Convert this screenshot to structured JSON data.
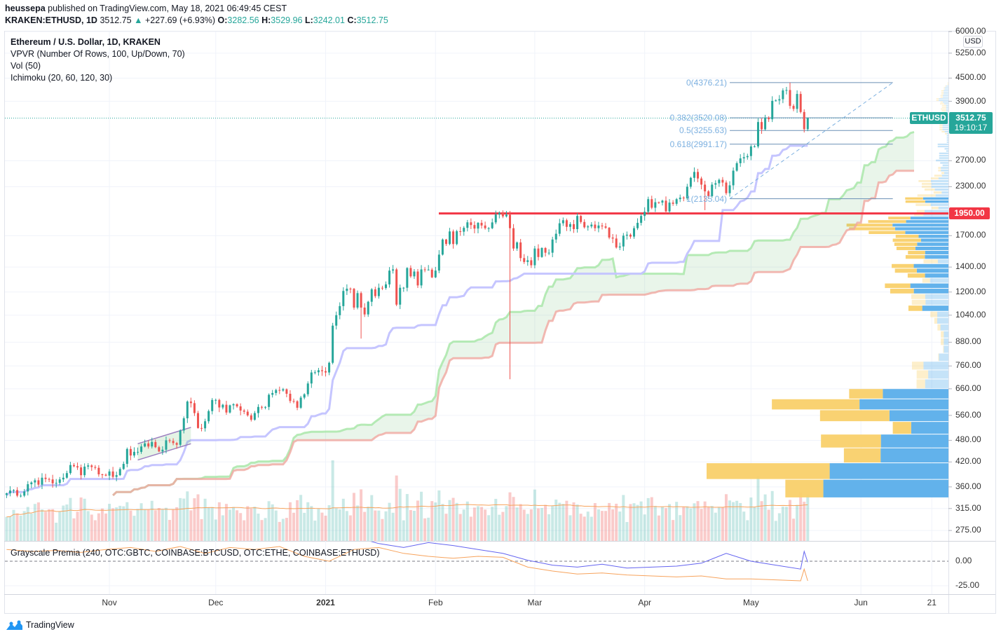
{
  "header": {
    "publisher": "heussepa",
    "published_text": " published on TradingView.com, May 18, 2021 06:49:45 CEST",
    "symbol": "KRAKEN:ETHUSD, 1D",
    "last": "3512.75",
    "change": "+227.69 (+6.93%)",
    "o_label": "O:",
    "o": "3282.56",
    "h_label": "H:",
    "h": "3529.96",
    "l_label": "L:",
    "l": "3242.01",
    "c_label": "C:",
    "c": "3512.75"
  },
  "legend": {
    "title": "Ethereum / U.S. Dollar, 1D, KRAKEN",
    "vpvr": "VPVR (Number Of Rows, 100, Up/Down, 70)",
    "vol": "Vol (50)",
    "ichimoku": "Ichimoku (20, 60, 120, 30)"
  },
  "premia_label": "Grayscale Premia (240, OTC:GBTC, COINBASE:BTCUSD, OTC:ETHE, COINBASE:ETHUSD)",
  "price_axis": {
    "currency": "USD",
    "ticks": [
      "6000.00",
      "5250.00",
      "4500.00",
      "3900.00",
      "2700.00",
      "2300.00",
      "1700.00",
      "1400.00",
      "1200.00",
      "1040.00",
      "880.00",
      "760.00",
      "660.00",
      "560.00",
      "480.00",
      "420.00",
      "360.00",
      "315.00",
      "275.00"
    ]
  },
  "premia_axis": {
    "ticks": [
      "0.00",
      "-25.00"
    ]
  },
  "time_axis": [
    {
      "label": "Nov",
      "date": "2020-11-01"
    },
    {
      "label": "Dec",
      "date": "2020-12-01"
    },
    {
      "label": "2021",
      "date": "2021-01-01",
      "bold": true
    },
    {
      "label": "Feb",
      "date": "2021-02-01"
    },
    {
      "label": "Mar",
      "date": "2021-03-01"
    },
    {
      "label": "Apr",
      "date": "2021-04-01"
    },
    {
      "label": "May",
      "date": "2021-05-01"
    },
    {
      "label": "Jun",
      "date": "2021-06-01"
    },
    {
      "label": "21",
      "date": "2021-06-21"
    }
  ],
  "tags": {
    "symbol": "ETHUSD",
    "price": "3512.75",
    "countdown": "19:10:17",
    "level": "1950.00"
  },
  "colors": {
    "up": "#26a69a",
    "down": "#ef5350",
    "vpvr_up": "#5aaeea",
    "vpvr_down": "#f9d06a",
    "level_line": "#f23645",
    "fib": "#7cb0e0",
    "base_line": "#c5c5ff",
    "span_a": "#a5e6a5",
    "span_b": "#f0a8a0",
    "vol_ma": "#f7a35c",
    "premia_eth": "#6464f0",
    "premia_btc": "#f7a35c",
    "tv_blue": "#2196f3"
  },
  "footer": {
    "logo_text": "TradingView"
  },
  "chart_data": [
    {
      "type": "candlestick",
      "interval": "1D",
      "start_date": "2020-10-03",
      "yscale": "log",
      "ylim": [
        275,
        6000
      ],
      "close": [
        346,
        352,
        353,
        341,
        341,
        350,
        366,
        370,
        375,
        365,
        381,
        378,
        377,
        368,
        369,
        377,
        381,
        392,
        412,
        409,
        406,
        387,
        408,
        411,
        407,
        405,
        389,
        388,
        386,
        396,
        383,
        387,
        402,
        415,
        455,
        437,
        447,
        447,
        462,
        471,
        462,
        475,
        460,
        448,
        453,
        480,
        478,
        472,
        467,
        510,
        550,
        610,
        604,
        568,
        518,
        517,
        540,
        575,
        616,
        616,
        588,
        598,
        570,
        596,
        600,
        592,
        577,
        573,
        560,
        545,
        568,
        590,
        588,
        590,
        636,
        643,
        655,
        653,
        658,
        640,
        612,
        611,
        587,
        625,
        638,
        682,
        730,
        731,
        740,
        736,
        730,
        775,
        975,
        1040,
        1100,
        1208,
        1225,
        1224,
        1090,
        1192,
        1090,
        1045,
        1130,
        1220,
        1170,
        1232,
        1230,
        1258,
        1370,
        1380,
        1110,
        1232,
        1232,
        1392,
        1322,
        1362,
        1250,
        1380,
        1377,
        1378,
        1314,
        1370,
        1512,
        1660,
        1615,
        1745,
        1614,
        1747,
        1742,
        1784,
        1846,
        1815,
        1776,
        1840,
        1810,
        1780,
        1780,
        1845,
        1937,
        1958,
        1915,
        1935,
        1780,
        1570,
        1630,
        1480,
        1445,
        1460,
        1416,
        1570,
        1490,
        1575,
        1530,
        1530,
        1660,
        1720,
        1835,
        1870,
        1795,
        1825,
        1770,
        1920,
        1850,
        1790,
        1800,
        1820,
        1780,
        1810,
        1800,
        1785,
        1680,
        1670,
        1580,
        1590,
        1700,
        1710,
        1690,
        1780,
        1840,
        1920,
        1970,
        2130,
        2020,
        2090,
        2085,
        2110,
        1975,
        2085,
        2070,
        2130,
        2150,
        2140,
        2300,
        2430,
        2520,
        2420,
        2330,
        2235,
        2170,
        2330,
        2350,
        2400,
        2360,
        2210,
        2320,
        2540,
        2660,
        2740,
        2760,
        2780,
        2950,
        2950,
        3430,
        3280,
        3520,
        3490,
        3910,
        3920,
        3950,
        4170,
        4180,
        3790,
        3720,
        4080,
        3650,
        3282.56,
        3512.75
      ],
      "wick_overrides": {
        "2021-01-11": {
          "low": 900
        },
        "2021-02-22": {
          "low": 700
        },
        "2021-04-18": {
          "low": 1990
        },
        "2021-05-12": {
          "high": 4376.21
        },
        "2021-05-17": {
          "open": 3282.56,
          "high": 3529.96,
          "low": 3242.01
        }
      },
      "horizontal_level": 1950,
      "fibonacci": [
        {
          "label": "0(4376.21)",
          "price": 4376.21
        },
        {
          "label": "0.382(3520.08)",
          "price": 3520.08
        },
        {
          "label": "0.5(3255.63)",
          "price": 3255.63
        },
        {
          "label": "0.618(2991.17)",
          "price": 2991.17
        },
        {
          "label": "1(2135.04)",
          "price": 2135.04
        }
      ],
      "fib_range": {
        "from": "2021-04-25",
        "to": "2021-06-10"
      },
      "channel": {
        "from": "2020-11-09",
        "to": "2020-11-24",
        "top": [
          470,
          520
        ],
        "bottom": [
          425,
          470
        ]
      }
    },
    {
      "type": "line",
      "title": "Grayscale Premia (240, OTC:GBTC, COINBASE:BTCUSD, OTC:ETHE, COINBASE:ETHUSD)",
      "ylim": [
        -30,
        20
      ],
      "zero_line": 0,
      "dates": [
        "2020-10-03",
        "2020-10-10",
        "2020-10-17",
        "2020-10-24",
        "2020-10-31",
        "2020-11-07",
        "2020-11-14",
        "2020-11-21",
        "2020-11-28",
        "2020-12-05",
        "2020-12-12",
        "2020-12-19",
        "2020-12-26",
        "2021-01-02",
        "2021-01-09",
        "2021-01-16",
        "2021-01-23",
        "2021-01-30",
        "2021-02-06",
        "2021-02-13",
        "2021-02-20",
        "2021-02-27",
        "2021-03-06",
        "2021-03-13",
        "2021-03-20",
        "2021-03-27",
        "2021-04-03",
        "2021-04-10",
        "2021-04-17",
        "2021-04-24",
        "2021-05-01",
        "2021-05-08",
        "2021-05-15",
        "2021-05-16",
        "2021-05-17"
      ],
      "series": [
        {
          "color_key": "premia_btc",
          "values": [
            12,
            10,
            11,
            9,
            12,
            14,
            10,
            15,
            8,
            14,
            12,
            15,
            5,
            0,
            12,
            14,
            8,
            5,
            3,
            5,
            4,
            -6,
            -10,
            -13,
            -12,
            -14,
            -15,
            -16,
            -15,
            -18,
            -18,
            -19,
            -20,
            -8,
            -20
          ]
        },
        {
          "color_key": "premia_eth",
          "values": [
            null,
            null,
            null,
            null,
            null,
            null,
            null,
            null,
            null,
            null,
            null,
            null,
            null,
            null,
            25,
            18,
            14,
            19,
            16,
            12,
            8,
            1,
            -4,
            -6,
            -3,
            -7,
            -6,
            -5,
            -2,
            8,
            0,
            -4,
            -8,
            10,
            -1
          ]
        }
      ]
    }
  ]
}
